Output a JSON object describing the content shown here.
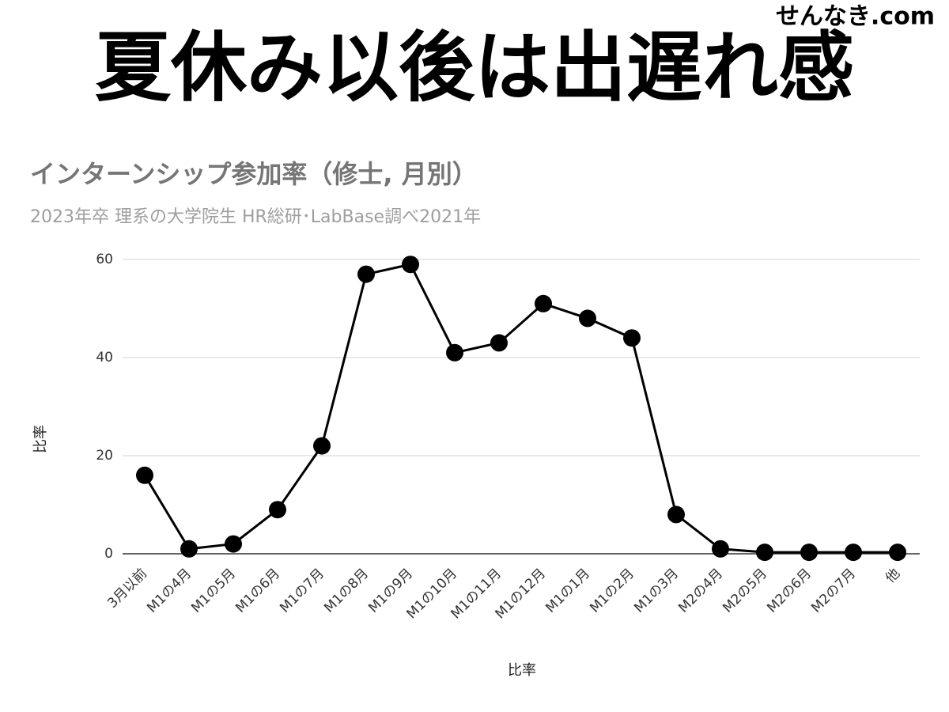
{
  "headline": "夏休み以後は出遅れ感",
  "watermark": "せんなき.com",
  "chart_data": {
    "type": "line",
    "title": "インターンシップ参加率（修士, 月別）",
    "subtitle": "2023年卒 理系の大学院生 HR総研･LabBase調べ2021年",
    "x_label": "比率",
    "y_label": "比率",
    "categories": [
      "3月以前",
      "M1の4月",
      "M1の5月",
      "M1の6月",
      "M1の7月",
      "M1の8月",
      "M1の9月",
      "M1の10月",
      "M1の11月",
      "M1の12月",
      "M1の1月",
      "M1の2月",
      "M1の3月",
      "M2の4月",
      "M2の5月",
      "M2の6月",
      "M2の7月",
      "他"
    ],
    "values": [
      16,
      1,
      2,
      9,
      22,
      57,
      59,
      41,
      43,
      51,
      48,
      44,
      8,
      1,
      0.3,
      0.3,
      0.3,
      0.3
    ],
    "color": "#000000",
    "ylim": [
      0,
      60
    ],
    "yticks": [
      0,
      20,
      40,
      60
    ],
    "grid": true
  }
}
